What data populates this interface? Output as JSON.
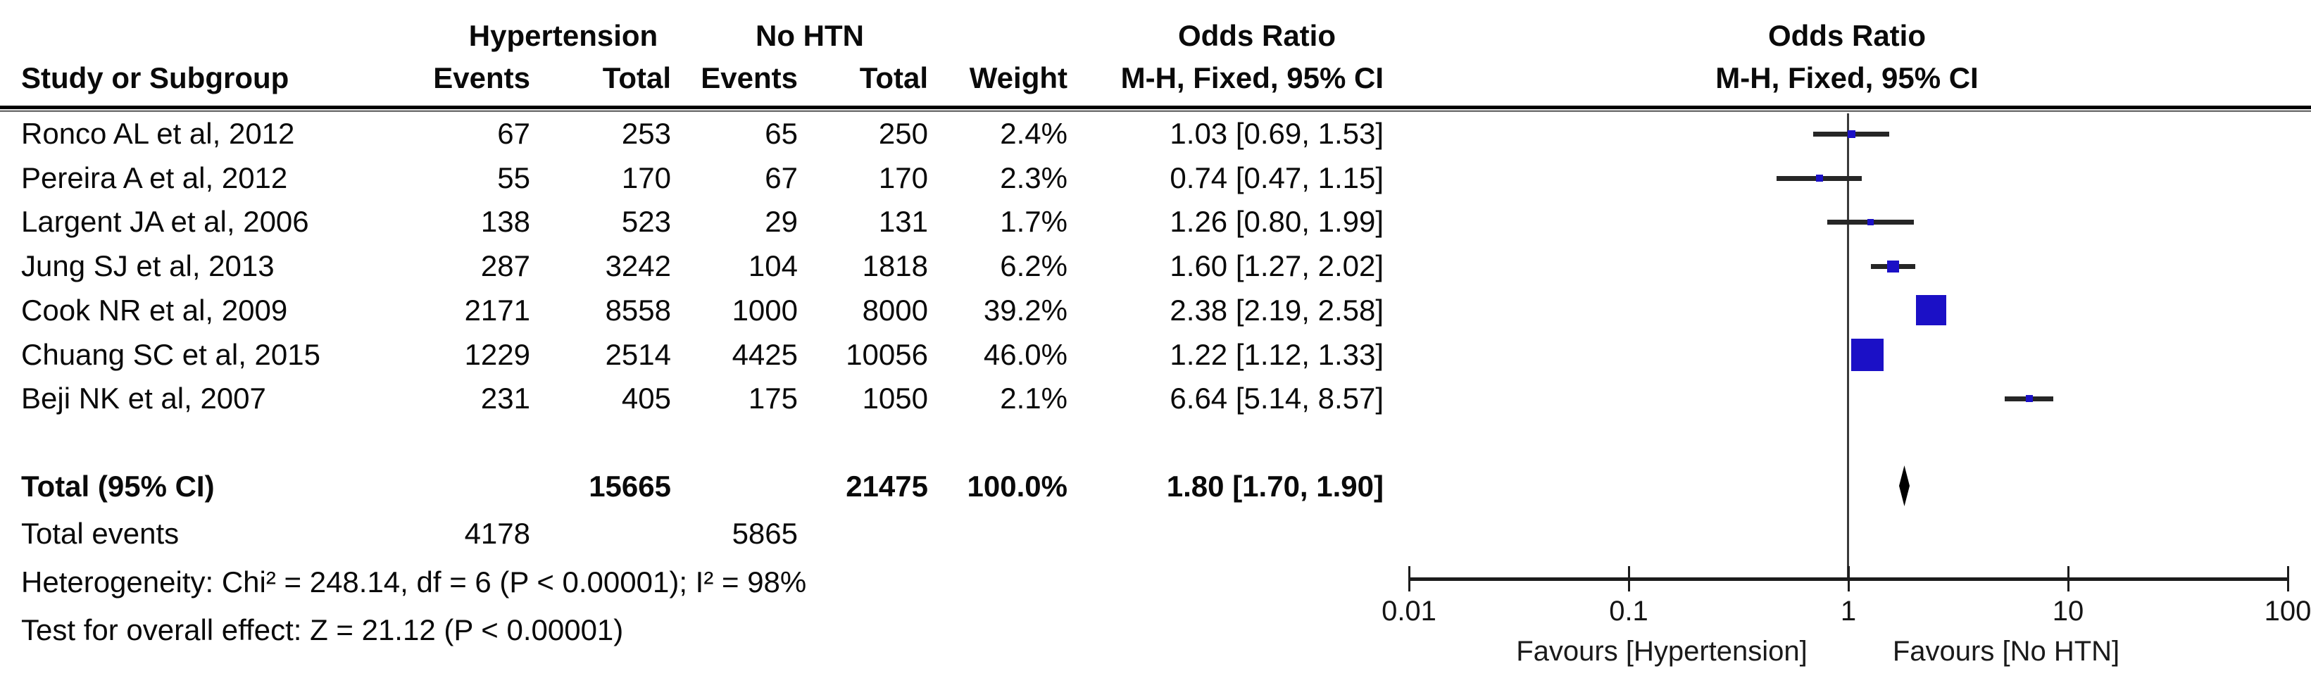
{
  "table": {
    "group_headers": {
      "hypertension": "Hypertension",
      "no_htn": "No HTN",
      "odds_ratio_table": "Odds Ratio",
      "odds_ratio_plot": "Odds Ratio"
    },
    "column_headers": {
      "study": "Study or Subgroup",
      "events1": "Events",
      "total1": "Total",
      "events2": "Events",
      "total2": "Total",
      "weight": "Weight",
      "mh_fixed_table": "M-H, Fixed, 95% CI",
      "mh_fixed_plot": "M-H, Fixed, 95% CI"
    },
    "studies": [
      {
        "name": "Ronco AL et al, 2012",
        "events1": "67",
        "total1": "253",
        "events2": "65",
        "total2": "250",
        "weight": "2.4%",
        "or_ci": "1.03 [0.69, 1.53]"
      },
      {
        "name": "Pereira A et al, 2012",
        "events1": "55",
        "total1": "170",
        "events2": "67",
        "total2": "170",
        "weight": "2.3%",
        "or_ci": "0.74 [0.47, 1.15]"
      },
      {
        "name": "Largent JA et al, 2006",
        "events1": "138",
        "total1": "523",
        "events2": "29",
        "total2": "131",
        "weight": "1.7%",
        "or_ci": "1.26 [0.80, 1.99]"
      },
      {
        "name": "Jung SJ et al, 2013",
        "events1": "287",
        "total1": "3242",
        "events2": "104",
        "total2": "1818",
        "weight": "6.2%",
        "or_ci": "1.60 [1.27, 2.02]"
      },
      {
        "name": "Cook NR et al, 2009",
        "events1": "2171",
        "total1": "8558",
        "events2": "1000",
        "total2": "8000",
        "weight": "39.2%",
        "or_ci": "2.38 [2.19, 2.58]"
      },
      {
        "name": "Chuang SC et al, 2015",
        "events1": "1229",
        "total1": "2514",
        "events2": "4425",
        "total2": "10056",
        "weight": "46.0%",
        "or_ci": "1.22 [1.12, 1.33]"
      },
      {
        "name": "Beji NK et al, 2007",
        "events1": "231",
        "total1": "405",
        "events2": "175",
        "total2": "1050",
        "weight": "2.1%",
        "or_ci": "6.64 [5.14, 8.57]"
      }
    ],
    "total_row": {
      "label": "Total (95% CI)",
      "total1": "15665",
      "total2": "21475",
      "weight": "100.0%",
      "or_ci": "1.80 [1.70, 1.90]"
    },
    "total_events": {
      "label": "Total events",
      "events1": "4178",
      "events2": "5865"
    },
    "heterogeneity": "Heterogeneity: Chi² = 248.14, df = 6 (P < 0.00001); I² = 98%",
    "overall_effect": "Test for overall effect: Z = 21.12 (P < 0.00001)"
  },
  "plot": {
    "axis_tick_labels": [
      "0.01",
      "0.1",
      "1",
      "10",
      "100"
    ],
    "favours_left": "Favours [Hypertension]",
    "favours_right": "Favours [No HTN]",
    "marker_color": "#1b10c6",
    "ci_line_color": "#262626",
    "diamond_color": "#000000"
  },
  "chart_data": {
    "type": "scatter",
    "subtype": "forest_plot",
    "title": "Odds Ratio",
    "effect_measure": "M-H, Fixed, 95% CI",
    "x_scale": "log",
    "xlim": [
      0.01,
      100
    ],
    "x_ticks": [
      0.01,
      0.1,
      1,
      10,
      100
    ],
    "xlabel_left": "Favours [Hypertension]",
    "xlabel_right": "Favours [No HTN]",
    "studies": [
      "Ronco AL et al, 2012",
      "Pereira A et al, 2012",
      "Largent JA et al, 2006",
      "Jung SJ et al, 2013",
      "Cook NR et al, 2009",
      "Chuang SC et al, 2015",
      "Beji NK et al, 2007"
    ],
    "or": [
      1.03,
      0.74,
      1.26,
      1.6,
      2.38,
      1.22,
      6.64
    ],
    "ci_low": [
      0.69,
      0.47,
      0.8,
      1.27,
      2.19,
      1.12,
      5.14
    ],
    "ci_high": [
      1.53,
      1.15,
      1.99,
      2.02,
      2.58,
      1.33,
      8.57
    ],
    "weights_pct": [
      2.4,
      2.3,
      1.7,
      6.2,
      39.2,
      46.0,
      2.1
    ],
    "events_hypertension": [
      67,
      55,
      138,
      287,
      2171,
      1229,
      231
    ],
    "total_hypertension": [
      253,
      170,
      523,
      3242,
      8558,
      2514,
      405
    ],
    "events_no_htn": [
      65,
      67,
      29,
      104,
      1000,
      4425,
      175
    ],
    "total_no_htn": [
      250,
      170,
      131,
      1818,
      8000,
      10056,
      1050
    ],
    "pooled": {
      "or": 1.8,
      "ci_low": 1.7,
      "ci_high": 1.9,
      "weight_pct": 100.0,
      "total1": 15665,
      "total2": 21475,
      "total_events1": 4178,
      "total_events2": 5865
    },
    "heterogeneity": {
      "chi2": 248.14,
      "df": 6,
      "p": "< 0.00001",
      "i2_pct": 98
    },
    "overall_effect": {
      "z": 21.12,
      "p": "< 0.00001"
    }
  }
}
